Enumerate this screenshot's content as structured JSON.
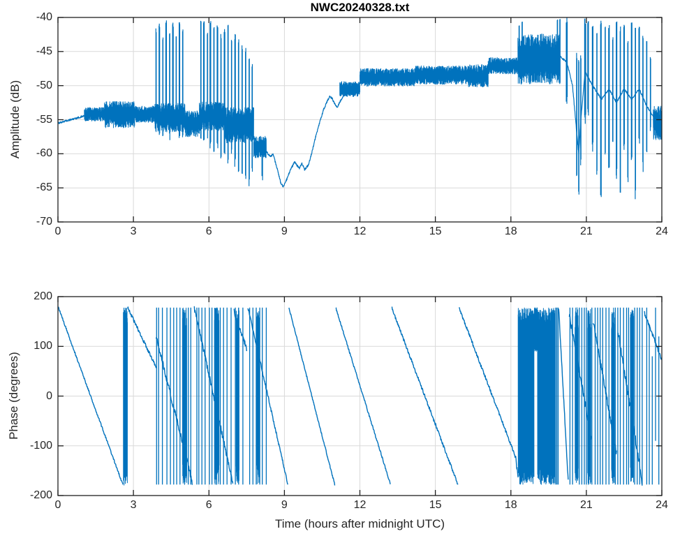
{
  "figure": {
    "title": "NWC20240328.txt",
    "xlabel": "Time (hours after midnight UTC)"
  },
  "colors": {
    "line": "#0072bd",
    "grid": "#d9d9d9",
    "axis": "#1f1f1f",
    "text": "#252525",
    "background": "#ffffff"
  },
  "chart_data": [
    {
      "type": "line",
      "title": "NWC20240328.txt",
      "ylabel": "Amplitude (dB)",
      "xlabel": "",
      "series_name": "amplitude",
      "xlim": [
        0,
        24
      ],
      "ylim": [
        -70,
        -40
      ],
      "xticks": [
        0,
        3,
        6,
        9,
        12,
        15,
        18,
        21,
        24
      ],
      "yticks": [
        -40,
        -45,
        -50,
        -55,
        -60,
        -65,
        -70
      ],
      "grid": true,
      "legend": null,
      "baseline": [
        [
          0,
          -55.5
        ],
        [
          0.4,
          -55.1
        ],
        [
          0.8,
          -54.7
        ],
        [
          1.1,
          -54.4
        ],
        [
          1.4,
          -54.2
        ],
        [
          1.8,
          -54.1
        ],
        [
          2.4,
          -53.9
        ],
        [
          3.0,
          -53.8
        ],
        [
          3.5,
          -54.0
        ],
        [
          3.85,
          -54.3
        ],
        [
          4.5,
          -54.6
        ],
        [
          5.05,
          -55.2
        ],
        [
          5.6,
          -55.4
        ],
        [
          6.2,
          -54.9
        ],
        [
          6.8,
          -55.3
        ],
        [
          7.3,
          -55.9
        ],
        [
          7.75,
          -57.4
        ],
        [
          8.0,
          -58.9
        ],
        [
          8.3,
          -59.8
        ],
        [
          8.45,
          -60.4
        ],
        [
          8.55,
          -60.1
        ],
        [
          8.7,
          -62.0
        ],
        [
          8.85,
          -64.2
        ],
        [
          8.95,
          -64.8
        ],
        [
          9.1,
          -63.7
        ],
        [
          9.25,
          -62.3
        ],
        [
          9.4,
          -61.2
        ],
        [
          9.5,
          -61.7
        ],
        [
          9.6,
          -62.1
        ],
        [
          9.7,
          -61.4
        ],
        [
          9.8,
          -62.3
        ],
        [
          9.95,
          -61.7
        ],
        [
          10.1,
          -59.7
        ],
        [
          10.25,
          -57.4
        ],
        [
          10.4,
          -55.4
        ],
        [
          10.55,
          -53.6
        ],
        [
          10.7,
          -52.3
        ],
        [
          10.8,
          -51.6
        ],
        [
          10.9,
          -51.9
        ],
        [
          11.0,
          -52.7
        ],
        [
          11.1,
          -53.2
        ],
        [
          11.2,
          -52.4
        ],
        [
          11.4,
          -51.3
        ],
        [
          11.7,
          -50.4
        ],
        [
          12.0,
          -49.7
        ],
        [
          12.5,
          -49.0
        ],
        [
          13.0,
          -48.7
        ],
        [
          14.0,
          -48.3
        ],
        [
          15.0,
          -48.3
        ],
        [
          16.0,
          -48.6
        ],
        [
          16.4,
          -48.8
        ],
        [
          17.0,
          -47.6
        ],
        [
          17.5,
          -47.0
        ],
        [
          18.0,
          -47.1
        ],
        [
          18.28,
          -46.5
        ],
        [
          19.0,
          -46.0
        ],
        [
          19.9,
          -45.6
        ],
        [
          20.22,
          -46.5
        ],
        [
          20.45,
          -50.0
        ],
        [
          20.62,
          -57.0
        ],
        [
          20.7,
          -60.0
        ],
        [
          20.78,
          -55.0
        ],
        [
          20.95,
          -48.0
        ],
        [
          21.25,
          -50.0
        ],
        [
          21.6,
          -52.0
        ],
        [
          21.9,
          -50.5
        ],
        [
          22.2,
          -52.5
        ],
        [
          22.5,
          -50.5
        ],
        [
          22.8,
          -52.0
        ],
        [
          23.1,
          -50.5
        ],
        [
          23.4,
          -53.0
        ],
        [
          23.66,
          -54.5
        ],
        [
          24,
          -55.4
        ]
      ],
      "noise_bands": [
        [
          1.05,
          1.85,
          -55.2,
          -53.2
        ],
        [
          1.85,
          3.05,
          -56.2,
          -52.3
        ],
        [
          3.05,
          3.85,
          -55.4,
          -53.0
        ],
        [
          3.85,
          5.05,
          -56.8,
          -52.6
        ],
        [
          5.05,
          5.62,
          -57.5,
          -53.6
        ],
        [
          5.62,
          6.6,
          -56.6,
          -52.4
        ],
        [
          6.6,
          7.78,
          -58.4,
          -53.2
        ],
        [
          7.78,
          8.28,
          -60.6,
          -57.4
        ],
        [
          11.2,
          12.0,
          -51.6,
          -49.4
        ],
        [
          12.0,
          14.2,
          -50.1,
          -47.5
        ],
        [
          14.2,
          16.3,
          -49.8,
          -47.1
        ],
        [
          16.3,
          17.1,
          -50.2,
          -46.9
        ],
        [
          17.1,
          18.28,
          -48.3,
          -45.9
        ],
        [
          18.28,
          19.95,
          -49.8,
          -42.4
        ],
        [
          23.66,
          24.0,
          -58.0,
          -53.0
        ]
      ],
      "spikes": [
        [
          3.9,
          -42.2,
          -55.5,
          2
        ],
        [
          4.03,
          -41.6,
          -56.5,
          3
        ],
        [
          4.17,
          -43.6,
          -57.0,
          2
        ],
        [
          4.3,
          -41.2,
          -55.5,
          3
        ],
        [
          4.44,
          -42.6,
          -57.5,
          2
        ],
        [
          4.57,
          -41.4,
          -56.0,
          3
        ],
        [
          4.7,
          -43.2,
          -56.5,
          2
        ],
        [
          4.83,
          -41.2,
          -57.0,
          3
        ],
        [
          4.96,
          -42.4,
          -58.0,
          2
        ],
        [
          5.68,
          -41.3,
          -57.5,
          2
        ],
        [
          5.8,
          -41.1,
          -58.0,
          3
        ],
        [
          5.94,
          -42.8,
          -57.0,
          2
        ],
        [
          6.06,
          -41.2,
          -58.5,
          3
        ],
        [
          6.2,
          -42.0,
          -60.0,
          2
        ],
        [
          6.34,
          -41.7,
          -59.0,
          3
        ],
        [
          6.48,
          -43.1,
          -61.0,
          2
        ],
        [
          6.62,
          -42.2,
          -60.0,
          3
        ],
        [
          6.76,
          -41.7,
          -61.0,
          2
        ],
        [
          6.9,
          -43.7,
          -60.0,
          2
        ],
        [
          7.04,
          -43.3,
          -61.5,
          3
        ],
        [
          7.18,
          -44.0,
          -62.0,
          2
        ],
        [
          7.32,
          -44.7,
          -63.0,
          2
        ],
        [
          7.46,
          -45.3,
          -63.5,
          2
        ],
        [
          7.6,
          -46.3,
          -64.0,
          2
        ],
        [
          7.72,
          -47.7,
          -62.0,
          2
        ],
        [
          8.12,
          -59.0,
          -63.2,
          3
        ],
        [
          18.33,
          -41.5,
          -48.0,
          2
        ],
        [
          18.45,
          -41.2,
          -47.5,
          2
        ],
        [
          19.85,
          -41.0,
          -48.0,
          2
        ],
        [
          19.95,
          -40.9,
          -49.0,
          2
        ],
        [
          20.22,
          -40.9,
          -52.0,
          4
        ],
        [
          20.62,
          -46.0,
          -63.0,
          2
        ],
        [
          20.7,
          -47.0,
          -65.4,
          2
        ],
        [
          20.78,
          -46.0,
          -61.0,
          2
        ],
        [
          20.95,
          -41.0,
          -55.0,
          4
        ],
        [
          21.07,
          -40.9,
          -54.0,
          3
        ],
        [
          21.25,
          -41.6,
          -59.0,
          3
        ],
        [
          21.42,
          -43.0,
          -63.0,
          2
        ],
        [
          21.58,
          -41.3,
          -66.0,
          3
        ],
        [
          21.75,
          -42.1,
          -60.0,
          2
        ],
        [
          21.9,
          -41.6,
          -62.0,
          3
        ],
        [
          22.05,
          -43.4,
          -58.5,
          2
        ],
        [
          22.2,
          -41.4,
          -63.0,
          3
        ],
        [
          22.35,
          -42.2,
          -65.0,
          2
        ],
        [
          22.5,
          -41.8,
          -59.0,
          3
        ],
        [
          22.65,
          -43.8,
          -64.0,
          2
        ],
        [
          22.8,
          -41.5,
          -61.0,
          3
        ],
        [
          22.95,
          -42.4,
          -66.0,
          2
        ],
        [
          23.1,
          -41.9,
          -58.0,
          3
        ],
        [
          23.25,
          -43.1,
          -62.0,
          2
        ],
        [
          23.4,
          -44.2,
          -59.0,
          2
        ],
        [
          23.55,
          -46.5,
          -56.5,
          2
        ]
      ]
    },
    {
      "type": "line",
      "title": "",
      "ylabel": "Phase (degrees)",
      "xlabel": "Time (hours after midnight UTC)",
      "series_name": "phase",
      "xlim": [
        0,
        24
      ],
      "ylim": [
        -200,
        200
      ],
      "xticks": [
        0,
        3,
        6,
        9,
        12,
        15,
        18,
        21,
        24
      ],
      "yticks": [
        200,
        100,
        0,
        -100,
        -200
      ],
      "grid": true,
      "legend": null,
      "ramps": [
        [
          0.02,
          178,
          2.58,
          -178,
          2
        ],
        [
          2.77,
          178,
          3.9,
          58,
          3
        ],
        [
          3.9,
          120,
          5.35,
          -176,
          6
        ],
        [
          5.42,
          176,
          6.95,
          -174,
          6
        ],
        [
          7.0,
          170,
          7.5,
          95,
          6
        ],
        [
          7.55,
          178,
          9.14,
          -178,
          3
        ],
        [
          9.18,
          178,
          11.0,
          -178,
          2
        ],
        [
          11.04,
          178,
          13.22,
          -178,
          2
        ],
        [
          13.26,
          178,
          15.9,
          -178,
          3
        ],
        [
          15.94,
          178,
          18.18,
          -122,
          3
        ],
        [
          18.18,
          -122,
          18.29,
          -168,
          8
        ],
        [
          19.9,
          178,
          20.28,
          -172,
          4
        ],
        [
          20.32,
          165,
          21.2,
          -85,
          8
        ],
        [
          21.26,
          150,
          22.2,
          -115,
          8
        ],
        [
          22.26,
          128,
          23.22,
          -172,
          8
        ],
        [
          23.3,
          168,
          24.0,
          73,
          4
        ]
      ],
      "wrap_lines": [
        [
          3.92,
          -178,
          178
        ],
        [
          4.0,
          -178,
          178
        ],
        [
          4.15,
          -178,
          178
        ],
        [
          4.33,
          -178,
          178
        ],
        [
          4.47,
          -178,
          178
        ],
        [
          4.6,
          -178,
          178
        ],
        [
          4.72,
          -178,
          178
        ],
        [
          4.85,
          -178,
          178
        ],
        [
          5.18,
          -178,
          178
        ],
        [
          5.28,
          -178,
          178
        ],
        [
          5.52,
          -178,
          178
        ],
        [
          5.6,
          -178,
          178
        ],
        [
          5.72,
          -178,
          178
        ],
        [
          5.85,
          -178,
          178
        ],
        [
          6.02,
          -178,
          178
        ],
        [
          6.12,
          -178,
          178
        ],
        [
          6.3,
          -178,
          178
        ],
        [
          6.45,
          -178,
          178
        ],
        [
          6.58,
          -178,
          178
        ],
        [
          6.72,
          -178,
          178
        ],
        [
          6.88,
          -178,
          178
        ],
        [
          7.05,
          -178,
          178
        ],
        [
          7.18,
          -178,
          178
        ],
        [
          7.35,
          -178,
          178
        ],
        [
          7.62,
          -178,
          178
        ],
        [
          7.75,
          -178,
          178
        ],
        [
          7.88,
          -178,
          178
        ],
        [
          8.02,
          -178,
          178
        ],
        [
          8.12,
          -178,
          178
        ],
        [
          8.28,
          -178,
          178
        ],
        [
          19.78,
          -178,
          178
        ],
        [
          19.83,
          -178,
          178
        ],
        [
          19.88,
          -178,
          178
        ],
        [
          20.35,
          -178,
          178
        ],
        [
          20.45,
          -178,
          178
        ],
        [
          20.72,
          -178,
          178
        ],
        [
          20.82,
          -178,
          178
        ],
        [
          20.92,
          -178,
          178
        ],
        [
          21.0,
          -178,
          178
        ],
        [
          21.22,
          -178,
          178
        ],
        [
          21.35,
          -178,
          178
        ],
        [
          21.45,
          -178,
          178
        ],
        [
          21.55,
          -178,
          178
        ],
        [
          21.65,
          -178,
          178
        ],
        [
          21.78,
          -178,
          178
        ],
        [
          21.9,
          -178,
          178
        ],
        [
          22.15,
          -178,
          178
        ],
        [
          22.25,
          -178,
          178
        ],
        [
          22.35,
          -178,
          178
        ],
        [
          22.48,
          -178,
          178
        ],
        [
          22.6,
          -178,
          178
        ],
        [
          22.68,
          -178,
          178
        ],
        [
          22.92,
          -178,
          178
        ],
        [
          23.02,
          -178,
          178
        ],
        [
          23.12,
          -178,
          178
        ],
        [
          23.22,
          -178,
          178
        ],
        [
          23.4,
          -178,
          178
        ],
        [
          23.5,
          -178,
          140
        ],
        [
          23.62,
          -178,
          80
        ],
        [
          23.75,
          -90,
          178
        ],
        [
          23.88,
          -178,
          120
        ]
      ],
      "noise_blocks": [
        [
          2.6,
          2.76,
          -180,
          180
        ],
        [
          4.95,
          5.12,
          -178,
          178
        ],
        [
          6.22,
          6.4,
          -178,
          178
        ],
        [
          7.08,
          7.2,
          -178,
          178
        ],
        [
          7.9,
          8.0,
          -178,
          178
        ],
        [
          18.29,
          18.92,
          -178,
          178
        ],
        [
          18.93,
          19.05,
          90,
          178
        ],
        [
          19.06,
          19.75,
          -178,
          178
        ],
        [
          20.55,
          20.68,
          -178,
          178
        ],
        [
          21.05,
          21.18,
          -178,
          178
        ],
        [
          22.0,
          22.12,
          -178,
          178
        ],
        [
          22.75,
          22.88,
          -178,
          178
        ]
      ]
    }
  ]
}
